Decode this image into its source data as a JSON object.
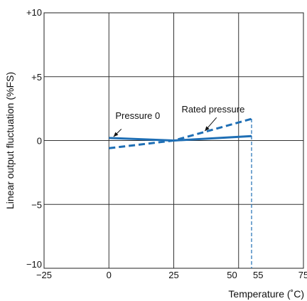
{
  "chart_data": {
    "type": "line",
    "title": "",
    "xlabel": "Temperature (˚C)",
    "ylabel": "Linear output fluctuation (%FS)",
    "xlim": [
      -25,
      75
    ],
    "ylim": [
      -10,
      10
    ],
    "x_ticks": [
      {
        "value": -25,
        "label": "−25"
      },
      {
        "value": 0,
        "label": "0"
      },
      {
        "value": 25,
        "label": "25"
      },
      {
        "value": 50,
        "label": "50"
      },
      {
        "value": 55,
        "label": "55"
      },
      {
        "value": 75,
        "label": "75"
      }
    ],
    "y_ticks": [
      {
        "value": 10,
        "label": "+10"
      },
      {
        "value": 5,
        "label": "+5"
      },
      {
        "value": 0,
        "label": "0"
      },
      {
        "value": -5,
        "label": "−5"
      },
      {
        "value": -10,
        "label": "−10"
      }
    ],
    "grid": true,
    "series": [
      {
        "name": "Pressure 0",
        "style": "solid",
        "color": "#1f6fb5",
        "points": [
          [
            0,
            0.2
          ],
          [
            25,
            0.0
          ],
          [
            55,
            0.35
          ]
        ]
      },
      {
        "name": "Rated pressure",
        "style": "dashed",
        "color": "#1f6fb5",
        "points": [
          [
            0,
            -0.6
          ],
          [
            25,
            0.0
          ],
          [
            55,
            1.7
          ]
        ]
      }
    ],
    "reference_lines": [
      {
        "x": 55,
        "from_y": 1.7,
        "to_y": -10,
        "style": "dashed",
        "color": "#1f6fb5"
      }
    ],
    "annotations": [
      {
        "text": "Pressure 0",
        "series": "Pressure 0",
        "label_at": [
          2.5,
          1.7
        ],
        "arrow_from": [
          4.8,
          0.9
        ],
        "arrow_to": [
          1.8,
          0.3
        ]
      },
      {
        "text": "Rated pressure",
        "series": "Rated pressure",
        "label_at": [
          28,
          2.2
        ],
        "arrow_from": [
          41.5,
          1.8
        ],
        "arrow_to": [
          37,
          0.75
        ]
      }
    ]
  }
}
